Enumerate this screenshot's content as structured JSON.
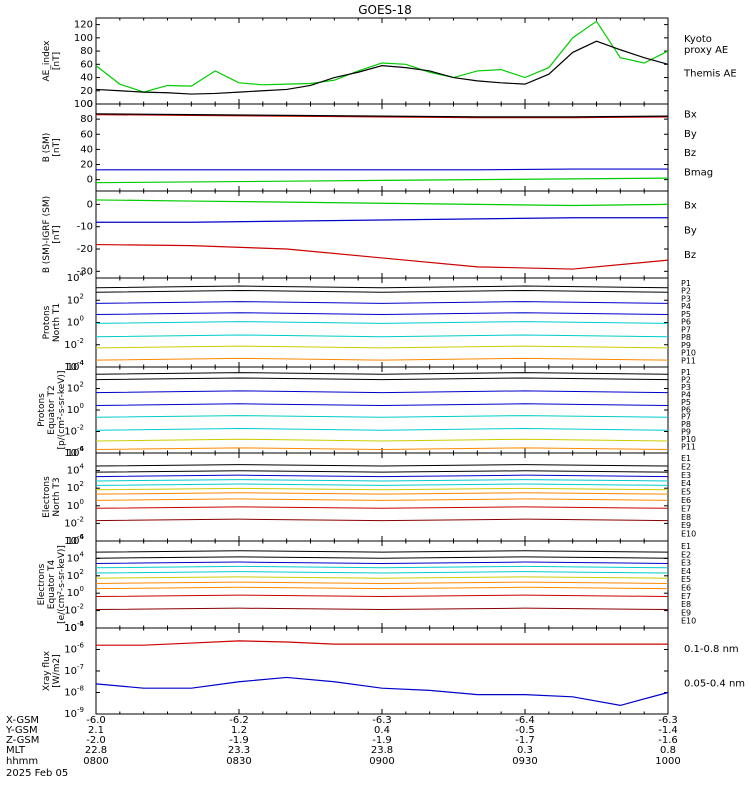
{
  "title": "GOES-18",
  "date_label": "2025 Feb 05",
  "footer": {
    "row_labels": [
      "X-GSM",
      "Y-GSM",
      "Z-GSM",
      "MLT",
      "hhmm"
    ],
    "columns": [
      {
        "time": "0800",
        "values": [
          "-6.0",
          "2.1",
          "-2.0",
          "22.8"
        ]
      },
      {
        "time": "0830",
        "values": [
          "-6.2",
          "1.2",
          "-1.9",
          "23.3"
        ]
      },
      {
        "time": "0900",
        "values": [
          "-6.3",
          "0.4",
          "-1.9",
          "23.8"
        ]
      },
      {
        "time": "0930",
        "values": [
          "-6.4",
          "-0.5",
          "-1.7",
          "0.3"
        ]
      },
      {
        "time": "1000",
        "values": [
          "-6.3",
          "-1.4",
          "-1.6",
          "0.8"
        ]
      }
    ]
  },
  "colors": {
    "black": "#000000",
    "green": "#00cc00",
    "blue": "#0000cc",
    "red": "#cc0000",
    "darkred": "#8b0000",
    "cyan": "#00cccc",
    "yellow": "#cccc00",
    "orange": "#ff8800"
  },
  "chart_data": [
    {
      "type": "line",
      "ylabel_lines": [
        "AE_index",
        "[nT]"
      ],
      "ylim": [
        0,
        130
      ],
      "yticks": [
        0,
        20,
        40,
        60,
        80,
        100,
        120
      ],
      "ytick_labels": [
        "0",
        "20",
        "40",
        "60",
        "80",
        "100",
        "120"
      ],
      "x": [
        0,
        5,
        10,
        15,
        20,
        25,
        30,
        35,
        40,
        45,
        50,
        55,
        60,
        65,
        70,
        75,
        80,
        85,
        90,
        95,
        100,
        105,
        110,
        115,
        120
      ],
      "series": [
        {
          "name": "Kyoto proxy AE",
          "legend_lines": [
            "Kyoto",
            "proxy AE"
          ],
          "color": "green",
          "values": [
            58,
            30,
            18,
            28,
            27,
            50,
            32,
            29,
            30,
            31,
            36,
            50,
            62,
            60,
            48,
            40,
            50,
            52,
            40,
            55,
            100,
            125,
            70,
            62,
            80
          ]
        },
        {
          "name": "Themis AE",
          "legend_lines": [
            "Themis AE"
          ],
          "color": "black",
          "values": [
            22,
            20,
            18,
            17,
            15,
            16,
            18,
            20,
            22,
            28,
            40,
            48,
            58,
            55,
            50,
            40,
            35,
            32,
            30,
            45,
            78,
            95,
            82,
            70,
            60
          ]
        }
      ]
    },
    {
      "type": "line",
      "ylabel_lines": [
        "B (SM)",
        "[nT]"
      ],
      "ylim": [
        -15,
        100
      ],
      "yticks": [
        0,
        20,
        40,
        60,
        80,
        100
      ],
      "ytick_labels": [
        "0",
        "20",
        "40",
        "60",
        "80",
        "100"
      ],
      "x": [
        0,
        20,
        40,
        60,
        80,
        100,
        120
      ],
      "series": [
        {
          "name": "Bx",
          "legend_lines": [
            "Bx"
          ],
          "color": "blue",
          "values": [
            13,
            13,
            13,
            13,
            13,
            14,
            14
          ]
        },
        {
          "name": "By",
          "legend_lines": [
            "By"
          ],
          "color": "green",
          "values": [
            -4,
            -3,
            -2,
            -1,
            0,
            1,
            2
          ]
        },
        {
          "name": "Bz",
          "legend_lines": [
            "Bz"
          ],
          "color": "red",
          "values": [
            86,
            85,
            84,
            83,
            82,
            82,
            83
          ]
        },
        {
          "name": "Bmag",
          "legend_lines": [
            "Bmag"
          ],
          "color": "black",
          "values": [
            87,
            86,
            85,
            84,
            83,
            83,
            84
          ]
        }
      ]
    },
    {
      "type": "line",
      "ylabel_lines": [
        "B (SM)-IGRF (SM)",
        "[nT]"
      ],
      "ylim": [
        -33,
        6
      ],
      "yticks": [
        -30,
        -20,
        -10,
        0
      ],
      "ytick_labels": [
        "-30",
        "-20",
        "-10",
        "0"
      ],
      "x": [
        0,
        20,
        40,
        60,
        80,
        100,
        120
      ],
      "series": [
        {
          "name": "Bx",
          "legend_lines": [
            "Bx"
          ],
          "color": "blue",
          "values": [
            -8,
            -8,
            -7.5,
            -7,
            -6.5,
            -6,
            -6
          ]
        },
        {
          "name": "By",
          "legend_lines": [
            "By"
          ],
          "color": "green",
          "values": [
            2,
            1.5,
            1,
            0.5,
            0,
            -0.5,
            0
          ]
        },
        {
          "name": "Bz",
          "legend_lines": [
            "Bz"
          ],
          "color": "red",
          "values": [
            -18,
            -18.5,
            -20,
            -24,
            -28,
            -29,
            -25
          ]
        }
      ]
    },
    {
      "type": "line",
      "ylabel_lines": [
        "Protons",
        "North T1"
      ],
      "log": true,
      "ylim_exp": [
        -4,
        4
      ],
      "yticks_exp": [
        -4,
        -2,
        0,
        2,
        4
      ],
      "channel_labels": [
        "P1",
        "P2",
        "P3",
        "P4",
        "P5",
        "P6",
        "P7",
        "P8",
        "P9",
        "P10",
        "P11"
      ],
      "channel_colors": [
        "black",
        "black",
        "blue",
        "blue",
        "cyan",
        "cyan",
        "yellow",
        "orange",
        "darkred",
        "red",
        "red"
      ],
      "x": [
        0,
        30,
        60,
        90,
        120
      ],
      "levels_exp": [
        3.2,
        2.8,
        1.8,
        0.8,
        0.0,
        -1.2,
        -2.2,
        -3.3
      ]
    },
    {
      "type": "line",
      "ylabel_lines": [
        "Protons",
        "Equator T2",
        "[p/(cm²-s-sr-keV)]"
      ],
      "log": true,
      "ylim_exp": [
        -4,
        4
      ],
      "yticks_exp": [
        -4,
        -2,
        0,
        2,
        4
      ],
      "channel_labels": [
        "P1",
        "P2",
        "P3",
        "P4",
        "P5",
        "P6",
        "P7",
        "P8",
        "P9",
        "P10",
        "P11"
      ],
      "channel_colors": [
        "black",
        "black",
        "blue",
        "blue",
        "cyan",
        "cyan",
        "yellow",
        "orange",
        "darkred",
        "red",
        "red"
      ],
      "x": [
        0,
        30,
        60,
        90,
        120
      ],
      "levels_exp": [
        3.4,
        2.9,
        1.7,
        0.5,
        -0.6,
        -1.8,
        -2.8,
        -3.6
      ]
    },
    {
      "type": "line",
      "ylabel_lines": [
        "Electrons",
        "North T3"
      ],
      "log": true,
      "ylim_exp": [
        -4,
        6
      ],
      "yticks_exp": [
        -4,
        -2,
        0,
        2,
        4,
        6
      ],
      "channel_labels": [
        "E1",
        "E2",
        "E3",
        "E4",
        "E5",
        "E6",
        "E7",
        "E8",
        "E9",
        "E10"
      ],
      "channel_colors": [
        "black",
        "black",
        "blue",
        "cyan",
        "cyan",
        "yellow",
        "orange",
        "orange",
        "red",
        "darkred"
      ],
      "x": [
        0,
        30,
        60,
        90,
        120
      ],
      "levels_exp": [
        4.6,
        3.9,
        3.4,
        2.9,
        2.4,
        1.9,
        1.4,
        0.7,
        -0.2,
        -1.6
      ]
    },
    {
      "type": "line",
      "ylabel_lines": [
        "Electrons",
        "Equator T4",
        "[e/(cm²-s-sr-keV)]"
      ],
      "log": true,
      "ylim_exp": [
        -4,
        6
      ],
      "yticks_exp": [
        -4,
        -2,
        0,
        2,
        4,
        6
      ],
      "channel_labels": [
        "E1",
        "E2",
        "E3",
        "E4",
        "E5",
        "E6",
        "E7",
        "E8",
        "E9",
        "E10"
      ],
      "channel_colors": [
        "black",
        "black",
        "blue",
        "cyan",
        "cyan",
        "yellow",
        "orange",
        "orange",
        "red",
        "darkred"
      ],
      "x": [
        0,
        30,
        60,
        90,
        120
      ],
      "levels_exp": [
        4.8,
        4.1,
        3.5,
        3.0,
        2.4,
        1.8,
        1.2,
        0.6,
        -0.3,
        -1.8
      ]
    },
    {
      "type": "line",
      "ylabel_lines": [
        "Xray flux",
        "[W/m2]"
      ],
      "log": true,
      "ylim_exp": [
        -9,
        -5
      ],
      "yticks_exp": [
        -9,
        -8,
        -7,
        -6,
        -5
      ],
      "x": [
        0,
        10,
        20,
        30,
        40,
        50,
        60,
        70,
        80,
        90,
        100,
        110,
        120
      ],
      "series": [
        {
          "name": "0.1-0.8 nm",
          "legend_lines": [
            "0.1-0.8 nm"
          ],
          "color": "red",
          "values_exp": [
            -5.8,
            -5.8,
            -5.7,
            -5.6,
            -5.65,
            -5.75,
            -5.75,
            -5.75,
            -5.75,
            -5.75,
            -5.75,
            -5.75,
            -5.75
          ]
        },
        {
          "name": "0.05-0.4 nm",
          "legend_lines": [
            "0.05-0.4 nm"
          ],
          "color": "blue",
          "values_exp": [
            -7.6,
            -7.8,
            -7.8,
            -7.5,
            -7.3,
            -7.5,
            -7.8,
            -7.9,
            -8.1,
            -8.1,
            -8.2,
            -8.6,
            -8.0
          ]
        }
      ]
    }
  ]
}
